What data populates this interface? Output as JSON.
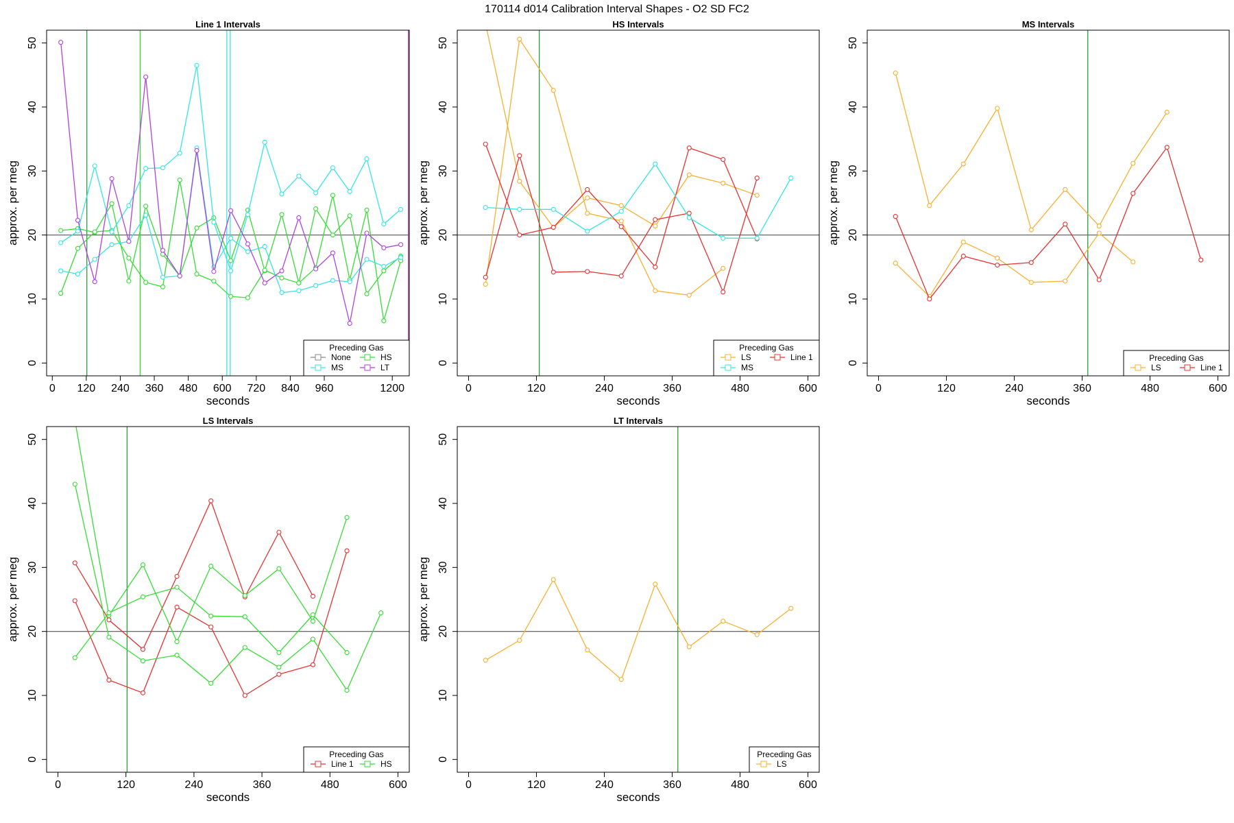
{
  "page_title": "170114   d014   Calibration Interval Shapes - O2 SD FC2",
  "colors": {
    "None": "#888888",
    "HS": "#33dd33",
    "MS": "#33e6e6",
    "LT": "#b040e0",
    "LS": "#f8b030",
    "Line 1": "#e83030",
    "reference_line": "#555555",
    "marker_line": "#2e9a3a"
  },
  "chart_data": [
    {
      "type": "line",
      "title": "Line 1 Intervals",
      "xlabel": "seconds",
      "ylabel": "approx. per meg",
      "xlim": [
        -20,
        1260
      ],
      "ylim": [
        -2,
        52
      ],
      "x_ticks": [
        0,
        120,
        240,
        360,
        480,
        600,
        720,
        840,
        960,
        1200
      ],
      "x_tick_labels": [
        "0",
        "120",
        "240",
        "360",
        "480",
        "600",
        "720",
        "840",
        "960",
        "1200"
      ],
      "y_ticks": [
        0,
        10,
        20,
        30,
        40,
        50
      ],
      "y_tick_labels": [
        "0",
        "10",
        "20",
        "30",
        "40",
        "50"
      ],
      "reference_line_y": 20,
      "vertical_lines": [
        {
          "x": 122,
          "color": "#2e9a3a"
        },
        {
          "x": 310,
          "color": "#33dd33"
        },
        {
          "x": 616,
          "color": "#33e6e6"
        },
        {
          "x": 628,
          "color": "#33e6e6"
        },
        {
          "x": 1257,
          "color": "#b040e0"
        }
      ],
      "legend": {
        "title": "Preceding Gas",
        "position": "bottom-right",
        "columns": 2,
        "entries": [
          "None",
          "HS",
          "MS",
          "LT"
        ]
      },
      "series": [
        {
          "name": "HS",
          "x": [
            30,
            90,
            150,
            210,
            270,
            330,
            390,
            450,
            510,
            570,
            630,
            690,
            750,
            810,
            870,
            930,
            990,
            1050,
            1110,
            1170,
            1230
          ],
          "y": [
            20.7,
            21.0,
            20.4,
            24.9,
            12.8,
            24.5,
            17.0,
            13.6,
            21.1,
            22.7,
            16.0,
            23.9,
            14.4,
            23.2,
            12.5,
            24.1,
            20.0,
            23.0,
            10.8,
            14.4,
            16.7
          ]
        },
        {
          "name": "HS",
          "x": [
            30,
            90,
            150,
            210,
            270,
            330,
            390,
            450,
            510,
            570,
            630,
            690,
            750,
            810,
            870,
            930,
            990,
            1050,
            1110,
            1170,
            1230
          ],
          "y": [
            10.9,
            17.9,
            20.5,
            20.7,
            16.4,
            12.6,
            11.9,
            28.6,
            13.9,
            12.8,
            10.4,
            10.2,
            14.5,
            13.3,
            12.5,
            14.9,
            26.2,
            13.0,
            23.9,
            6.6,
            16.0
          ]
        },
        {
          "name": "MS",
          "x": [
            30,
            90,
            150,
            210,
            270,
            330,
            390,
            450,
            510,
            570,
            630,
            690,
            750,
            810,
            870,
            930,
            990,
            1050,
            1110,
            1170,
            1230
          ],
          "y": [
            18.8,
            20.6,
            30.8,
            20.5,
            24.6,
            30.4,
            30.5,
            32.8,
            46.5,
            22.0,
            14.4,
            23.2,
            34.5,
            26.4,
            29.2,
            26.6,
            30.5,
            26.8,
            31.9,
            21.7,
            24.0
          ]
        },
        {
          "name": "MS",
          "x": [
            30,
            90,
            150,
            210,
            270,
            330,
            390,
            450,
            510,
            570,
            630,
            690,
            750,
            810,
            870,
            930,
            990,
            1050,
            1110,
            1170,
            1230
          ],
          "y": [
            14.4,
            13.9,
            16.2,
            18.5,
            19.0,
            23.1,
            13.4,
            13.6,
            33.6,
            15.0,
            19.5,
            17.4,
            18.2,
            11.0,
            11.3,
            12.1,
            12.9,
            12.7,
            16.2,
            15.1,
            16.5
          ]
        },
        {
          "name": "LT",
          "x": [
            30,
            90,
            150,
            210,
            270,
            330,
            390,
            450,
            510,
            570,
            630,
            690,
            750,
            810,
            870,
            930,
            990,
            1050,
            1110,
            1170,
            1230
          ],
          "y": [
            50.1,
            22.3,
            12.7,
            28.8,
            19.0,
            44.7,
            17.6,
            13.6,
            33.2,
            14.3,
            23.8,
            18.6,
            12.5,
            14.4,
            22.7,
            14.7,
            17.2,
            6.2,
            20.3,
            18.0,
            18.5
          ]
        }
      ]
    },
    {
      "type": "line",
      "title": "HS Intervals",
      "xlabel": "seconds",
      "ylabel": "approx. per meg",
      "xlim": [
        -20,
        620
      ],
      "ylim": [
        -2,
        52
      ],
      "x_ticks": [
        0,
        120,
        240,
        360,
        480,
        600
      ],
      "x_tick_labels": [
        "0",
        "120",
        "240",
        "360",
        "480",
        "600"
      ],
      "y_ticks": [
        0,
        10,
        20,
        30,
        40,
        50
      ],
      "y_tick_labels": [
        "0",
        "10",
        "20",
        "30",
        "40",
        "50"
      ],
      "reference_line_y": 20,
      "vertical_lines": [
        {
          "x": 125,
          "color": "#2e9a3a"
        }
      ],
      "legend": {
        "title": "Preceding Gas",
        "position": "bottom-right",
        "columns": 2,
        "entries": [
          "LS",
          "Line 1",
          "MS"
        ]
      },
      "series": [
        {
          "name": "LS",
          "x": [
            30,
            90,
            150,
            210,
            270,
            330,
            390,
            450,
            510
          ],
          "y": [
            12.3,
            50.6,
            42.6,
            23.4,
            22.2,
            11.3,
            10.6,
            14.8,
            null
          ]
        },
        {
          "name": "LS",
          "x": [
            30,
            90,
            150,
            210,
            270,
            330,
            390,
            450,
            510
          ],
          "y": [
            53.0,
            28.4,
            21.2,
            25.8,
            24.6,
            21.4,
            29.4,
            28.1,
            26.2
          ]
        },
        {
          "name": "Line 1",
          "x": [
            30,
            90,
            150,
            210,
            270,
            330,
            390,
            450,
            510
          ],
          "y": [
            34.2,
            20.0,
            21.2,
            27.1,
            21.3,
            15.0,
            33.6,
            31.8,
            19.4
          ]
        },
        {
          "name": "Line 1",
          "x": [
            30,
            90,
            150,
            210,
            270,
            330,
            390,
            450,
            510
          ],
          "y": [
            13.4,
            32.4,
            14.2,
            14.3,
            13.6,
            22.4,
            23.4,
            11.1,
            28.9
          ]
        },
        {
          "name": "MS",
          "x": [
            30,
            90,
            150,
            210,
            270,
            330,
            390,
            450,
            510,
            570
          ],
          "y": [
            24.3,
            24.0,
            24.0,
            20.6,
            23.7,
            31.1,
            22.7,
            19.5,
            19.5,
            28.9
          ]
        }
      ]
    },
    {
      "type": "line",
      "title": "MS Intervals",
      "xlabel": "seconds",
      "ylabel": "approx. per meg",
      "xlim": [
        -20,
        620
      ],
      "ylim": [
        -2,
        52
      ],
      "x_ticks": [
        0,
        120,
        240,
        360,
        480,
        600
      ],
      "x_tick_labels": [
        "0",
        "120",
        "240",
        "360",
        "480",
        "600"
      ],
      "y_ticks": [
        0,
        10,
        20,
        30,
        40,
        50
      ],
      "y_tick_labels": [
        "0",
        "10",
        "20",
        "30",
        "40",
        "50"
      ],
      "reference_line_y": 20,
      "vertical_lines": [
        {
          "x": 370,
          "color": "#2e9a3a"
        }
      ],
      "legend": {
        "title": "Preceding Gas",
        "position": "bottom-right",
        "columns": 2,
        "entries": [
          "LS",
          "Line 1"
        ]
      },
      "series": [
        {
          "name": "LS",
          "x": [
            30,
            90,
            150,
            210,
            270,
            330,
            390,
            450,
            510
          ],
          "y": [
            45.3,
            24.6,
            31.1,
            39.8,
            20.8,
            27.1,
            21.4,
            31.2,
            39.2
          ]
        },
        {
          "name": "LS",
          "x": [
            30,
            90,
            150,
            210,
            270,
            330,
            390,
            450
          ],
          "y": [
            15.6,
            10.4,
            18.9,
            16.4,
            12.6,
            12.8,
            20.3,
            15.8
          ]
        },
        {
          "name": "Line 1",
          "x": [
            30,
            90,
            150,
            210,
            270,
            330,
            390,
            450,
            510,
            570
          ],
          "y": [
            22.9,
            10.0,
            16.7,
            15.3,
            15.7,
            21.7,
            13.0,
            26.5,
            33.7,
            16.1
          ]
        }
      ]
    },
    {
      "type": "line",
      "title": "LS Intervals",
      "xlabel": "seconds",
      "ylabel": "approx. per meg",
      "xlim": [
        -20,
        620
      ],
      "ylim": [
        -2,
        52
      ],
      "x_ticks": [
        0,
        120,
        240,
        360,
        480,
        600
      ],
      "x_tick_labels": [
        "0",
        "120",
        "240",
        "360",
        "480",
        "600"
      ],
      "y_ticks": [
        0,
        10,
        20,
        30,
        40,
        50
      ],
      "y_tick_labels": [
        "0",
        "10",
        "20",
        "30",
        "40",
        "50"
      ],
      "reference_line_y": 20,
      "vertical_lines": [
        {
          "x": 122,
          "color": "#2e9a3a"
        }
      ],
      "legend": {
        "title": "Preceding Gas",
        "position": "bottom-right",
        "columns": 2,
        "entries": [
          "Line 1",
          "HS"
        ]
      },
      "series": [
        {
          "name": "Line 1",
          "x": [
            30,
            90,
            150,
            210,
            270,
            330,
            390,
            450,
            510
          ],
          "y": [
            30.7,
            21.8,
            17.2,
            28.6,
            40.4,
            25.4,
            35.5,
            25.5,
            null
          ]
        },
        {
          "name": "Line 1",
          "x": [
            30,
            90,
            150,
            210,
            270,
            330,
            390,
            450,
            510
          ],
          "y": [
            24.8,
            12.4,
            10.4,
            23.8,
            20.7,
            10.0,
            13.3,
            14.8,
            32.6
          ]
        },
        {
          "name": "HS",
          "x": [
            30,
            90,
            150,
            210,
            270,
            330,
            390,
            450,
            510
          ],
          "y": [
            53.0,
            22.5,
            30.4,
            18.4,
            30.2,
            25.6,
            29.8,
            21.6,
            37.8
          ]
        },
        {
          "name": "HS",
          "x": [
            30,
            90,
            150,
            210,
            270,
            330,
            390,
            450,
            510,
            570
          ],
          "y": [
            43.0,
            19.1,
            15.4,
            16.3,
            11.9,
            17.5,
            14.4,
            18.8,
            10.8,
            22.9
          ]
        },
        {
          "name": "HS",
          "x": [
            30,
            90,
            150,
            210,
            270,
            330,
            390,
            450,
            510
          ],
          "y": [
            15.9,
            22.9,
            25.4,
            26.9,
            22.4,
            22.3,
            16.7,
            22.6,
            16.7
          ]
        }
      ]
    },
    {
      "type": "line",
      "title": "LT Intervals",
      "xlabel": "seconds",
      "ylabel": "approx. per meg",
      "xlim": [
        -20,
        620
      ],
      "ylim": [
        -2,
        52
      ],
      "x_ticks": [
        0,
        120,
        240,
        360,
        480,
        600
      ],
      "x_tick_labels": [
        "0",
        "120",
        "240",
        "360",
        "480",
        "600"
      ],
      "y_ticks": [
        0,
        10,
        20,
        30,
        40,
        50
      ],
      "y_tick_labels": [
        "0",
        "10",
        "20",
        "30",
        "40",
        "50"
      ],
      "reference_line_y": 20,
      "vertical_lines": [
        {
          "x": 370,
          "color": "#2e9a3a"
        }
      ],
      "legend": {
        "title": "Preceding Gas",
        "position": "bottom-right",
        "columns": 1,
        "entries": [
          "LS"
        ]
      },
      "series": [
        {
          "name": "LS",
          "x": [
            30,
            90,
            150,
            210,
            270,
            330,
            390,
            450,
            510,
            570
          ],
          "y": [
            15.5,
            18.6,
            28.1,
            17.1,
            12.5,
            27.4,
            17.6,
            21.6,
            19.5,
            23.6
          ]
        }
      ]
    }
  ]
}
